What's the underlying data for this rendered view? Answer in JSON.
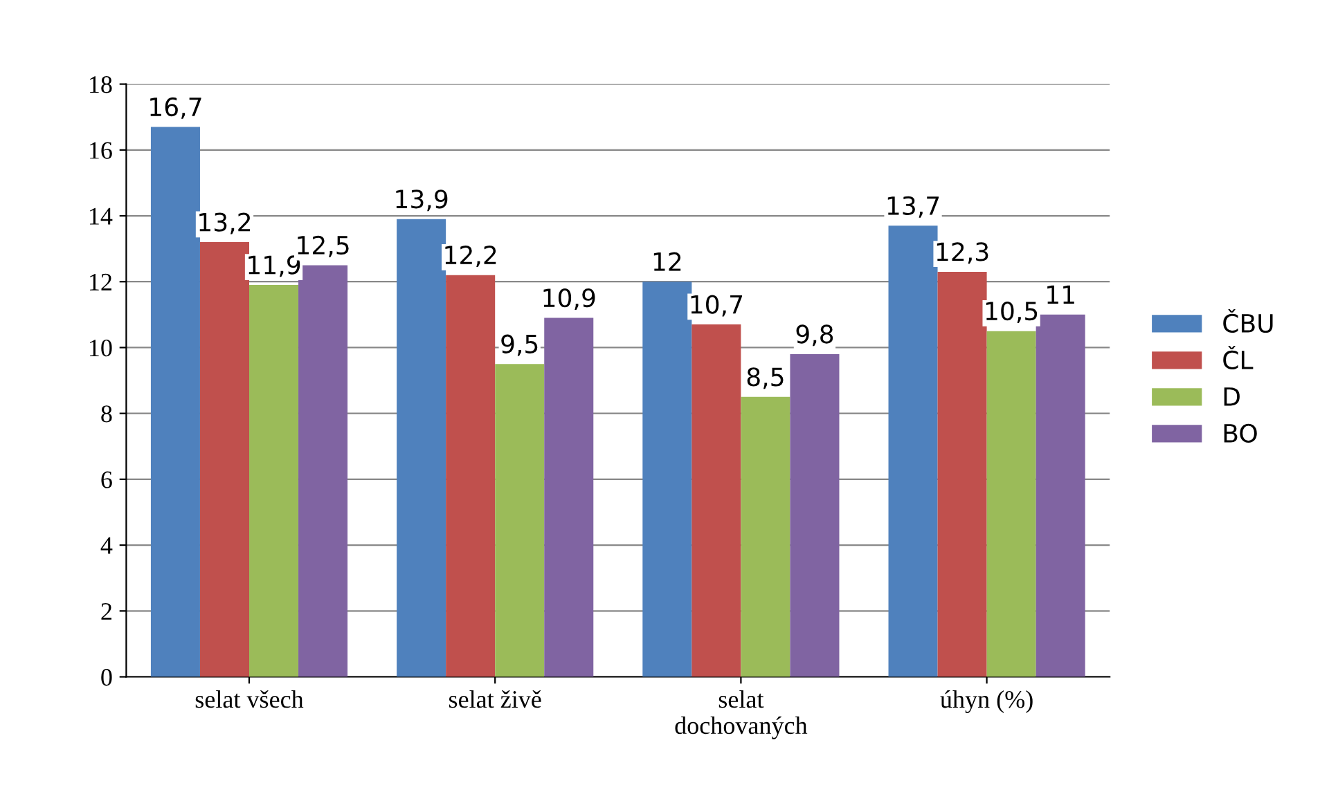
{
  "chart_data": {
    "type": "bar",
    "categories": [
      "selat všech",
      "selat živě",
      "selat\ndochovaných",
      "úhyn (%)"
    ],
    "series": [
      {
        "name": "ČBU",
        "color": "#4f81bd",
        "values": [
          16.7,
          13.9,
          12,
          13.7
        ],
        "value_labels": [
          "16,7",
          "13,9",
          "12",
          "13,7"
        ]
      },
      {
        "name": "ČL",
        "color": "#c0504d",
        "values": [
          13.2,
          12.2,
          10.7,
          12.3
        ],
        "value_labels": [
          "13,2",
          "12,2",
          "10,7",
          "12,3"
        ]
      },
      {
        "name": "D",
        "color": "#9bbb59",
        "values": [
          11.9,
          9.5,
          8.5,
          10.5
        ],
        "value_labels": [
          "11,9",
          "9,5",
          "8,5",
          "10,5"
        ]
      },
      {
        "name": "BO",
        "color": "#8064a2",
        "values": [
          12.5,
          10.9,
          9.8,
          11
        ],
        "value_labels": [
          "12,5",
          "10,9",
          "9,8",
          "11"
        ]
      }
    ],
    "ylim": [
      0,
      18
    ],
    "yticks": [
      0,
      2,
      4,
      6,
      8,
      10,
      12,
      14,
      16,
      18
    ],
    "grid": "y",
    "legend": "right"
  }
}
